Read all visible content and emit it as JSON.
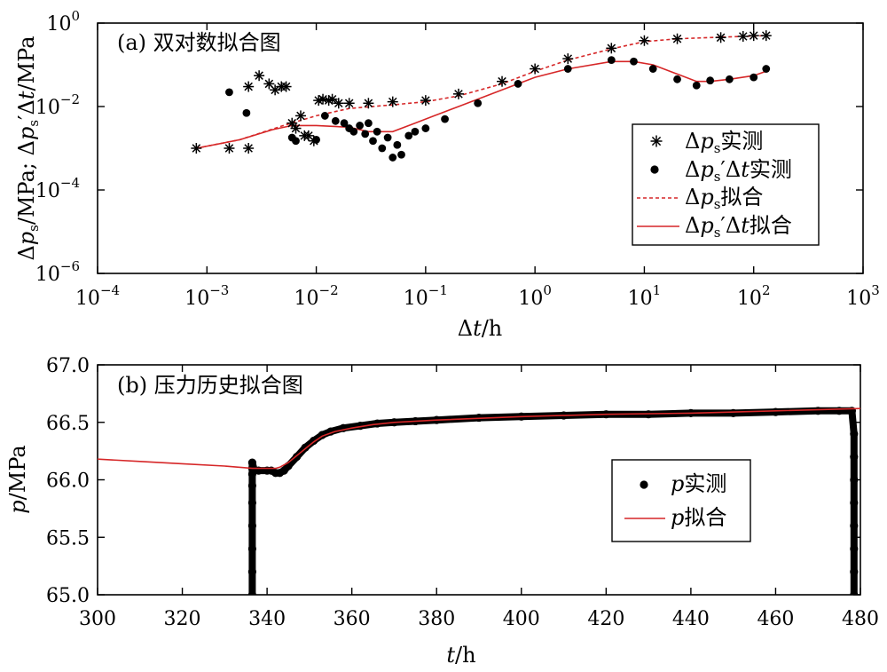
{
  "chart_data": [
    {
      "type": "scatter",
      "title": "(a) 双对数拟合图",
      "xlabel": "Δt/h",
      "ylabel": "Δp_s/MPa; Δp_s′Δt/MPa",
      "x_scale": "log",
      "y_scale": "log",
      "xlim": [
        0.0001,
        1000
      ],
      "ylim": [
        1e-06,
        1
      ],
      "x_ticks": [
        {
          "base": "10",
          "exp": "−4",
          "value": 0.0001
        },
        {
          "base": "10",
          "exp": "−3",
          "value": 0.001
        },
        {
          "base": "10",
          "exp": "−2",
          "value": 0.01
        },
        {
          "base": "10",
          "exp": "−1",
          "value": 0.1
        },
        {
          "base": "10",
          "exp": "0",
          "value": 1
        },
        {
          "base": "10",
          "exp": "1",
          "value": 10
        },
        {
          "base": "10",
          "exp": "2",
          "value": 100
        },
        {
          "base": "10",
          "exp": "3",
          "value": 1000
        }
      ],
      "y_ticks": [
        {
          "base": "10",
          "exp": "−6",
          "value": 1e-06
        },
        {
          "base": "10",
          "exp": "−4",
          "value": 0.0001
        },
        {
          "base": "10",
          "exp": "−2",
          "value": 0.01
        },
        {
          "base": "10",
          "exp": "0",
          "value": 1
        }
      ],
      "legend_position": "right",
      "legend": [
        {
          "marker": "star",
          "label": "Δp_s实测"
        },
        {
          "marker": "dot",
          "label": "Δp_s′Δt实测"
        },
        {
          "marker": "dashed-line",
          "label": "Δp_s拟合"
        },
        {
          "marker": "solid-line",
          "label": "Δp_s′Δt拟合"
        }
      ],
      "series": [
        {
          "name": "Δp_s实测",
          "marker": "star",
          "x": [
            0.0008,
            0.0016,
            0.0024,
            0.0024,
            0.003,
            0.0037,
            0.0042,
            0.0048,
            0.0053,
            0.006,
            0.0065,
            0.0072,
            0.0078,
            0.0085,
            0.0095,
            0.0105,
            0.0115,
            0.013,
            0.014,
            0.016,
            0.02,
            0.03,
            0.05,
            0.1,
            0.2,
            0.5,
            1,
            2,
            5,
            10,
            20,
            50,
            80,
            100,
            130
          ],
          "y": [
            0.001,
            0.001,
            0.001,
            0.03,
            0.055,
            0.035,
            0.025,
            0.03,
            0.03,
            0.004,
            0.003,
            0.006,
            0.002,
            0.002,
            0.0015,
            0.014,
            0.015,
            0.014,
            0.015,
            0.012,
            0.012,
            0.012,
            0.013,
            0.014,
            0.02,
            0.04,
            0.08,
            0.14,
            0.25,
            0.38,
            0.42,
            0.45,
            0.48,
            0.5,
            0.5
          ]
        },
        {
          "name": "Δp_s′Δt实测",
          "marker": "dot",
          "x": [
            0.0016,
            0.0023,
            0.006,
            0.0065,
            0.01,
            0.012,
            0.015,
            0.018,
            0.02,
            0.022,
            0.025,
            0.028,
            0.03,
            0.033,
            0.036,
            0.04,
            0.045,
            0.05,
            0.055,
            0.06,
            0.07,
            0.08,
            0.1,
            0.15,
            0.3,
            0.7,
            2,
            5,
            8,
            12,
            20,
            30,
            40,
            60,
            100,
            130
          ],
          "y": [
            0.022,
            0.007,
            0.0018,
            0.0015,
            0.0016,
            0.006,
            0.0045,
            0.004,
            0.003,
            0.0025,
            0.0035,
            0.0022,
            0.004,
            0.0015,
            0.0025,
            0.001,
            0.0018,
            0.0006,
            0.0012,
            0.0007,
            0.002,
            0.0025,
            0.003,
            0.005,
            0.012,
            0.035,
            0.08,
            0.13,
            0.12,
            0.08,
            0.045,
            0.032,
            0.042,
            0.045,
            0.05,
            0.08
          ]
        },
        {
          "name": "Δp_s拟合",
          "line": "dashed",
          "color": "#d62728",
          "x": [
            0.0008,
            0.002,
            0.005,
            0.01,
            0.02,
            0.05,
            0.1,
            0.2,
            0.5,
            1,
            2,
            5,
            10,
            20,
            50,
            100,
            130
          ],
          "y": [
            0.001,
            0.0016,
            0.0035,
            0.006,
            0.009,
            0.011,
            0.013,
            0.018,
            0.035,
            0.07,
            0.13,
            0.24,
            0.36,
            0.42,
            0.46,
            0.49,
            0.5
          ]
        },
        {
          "name": "Δp_s′Δt拟合",
          "line": "solid",
          "color": "#d62728",
          "x": [
            0.0008,
            0.002,
            0.004,
            0.006,
            0.01,
            0.02,
            0.03,
            0.05,
            0.08,
            0.12,
            0.2,
            0.5,
            1,
            2,
            5,
            8,
            12,
            20,
            30,
            40,
            60,
            100,
            130
          ],
          "y": [
            0.001,
            0.0016,
            0.0028,
            0.0035,
            0.0035,
            0.0032,
            0.0025,
            0.0025,
            0.004,
            0.006,
            0.01,
            0.025,
            0.05,
            0.08,
            0.12,
            0.12,
            0.1,
            0.06,
            0.04,
            0.04,
            0.045,
            0.055,
            0.07
          ]
        }
      ]
    },
    {
      "type": "scatter",
      "title": "(b) 压力历史拟合图",
      "xlabel": "t/h",
      "ylabel": "p/MPa",
      "xlim": [
        300,
        480
      ],
      "ylim": [
        65.0,
        67.0
      ],
      "x_ticks": [
        "300",
        "320",
        "340",
        "360",
        "380",
        "400",
        "420",
        "440",
        "460",
        "480"
      ],
      "y_ticks": [
        "65.0",
        "65.5",
        "66.0",
        "66.5",
        "67.0"
      ],
      "legend_position": "right",
      "legend": [
        {
          "marker": "dot",
          "label": "p实测"
        },
        {
          "marker": "solid-line",
          "label": "p拟合"
        }
      ],
      "series": [
        {
          "name": "p实测",
          "marker": "dot",
          "x": [
            336.5,
            336.5,
            336.5,
            336.5,
            336.5,
            336.5,
            336.5,
            336.5,
            336.5,
            337,
            338,
            340,
            341,
            342,
            343,
            344,
            345,
            347,
            349,
            351,
            353,
            355,
            358,
            362,
            366,
            370,
            375,
            380,
            390,
            400,
            410,
            420,
            430,
            440,
            450,
            460,
            470,
            475,
            478,
            478.5,
            478.5,
            478.5,
            478.5,
            478.5,
            478.5,
            478.5,
            478.5
          ],
          "y": [
            65.0,
            65.2,
            65.4,
            65.6,
            65.8,
            65.95,
            66.05,
            66.1,
            66.15,
            66.08,
            66.08,
            66.08,
            66.08,
            66.06,
            66.06,
            66.08,
            66.12,
            66.2,
            66.28,
            66.34,
            66.39,
            66.42,
            66.45,
            66.47,
            66.49,
            66.5,
            66.51,
            66.52,
            66.54,
            66.55,
            66.56,
            66.57,
            66.57,
            66.58,
            66.58,
            66.59,
            66.6,
            66.6,
            66.6,
            66.4,
            66.2,
            66.0,
            65.8,
            65.6,
            65.4,
            65.2,
            65.0
          ]
        },
        {
          "name": "p拟合",
          "line": "solid",
          "color": "#d62728",
          "x": [
            300,
            310,
            320,
            330,
            336.5,
            338,
            340,
            342,
            343,
            345,
            347,
            349,
            351,
            353,
            356,
            360,
            365,
            370,
            380,
            400,
            420,
            440,
            460,
            480
          ],
          "y": [
            66.18,
            66.16,
            66.14,
            66.12,
            66.1,
            66.1,
            66.1,
            66.1,
            66.11,
            66.15,
            66.21,
            66.27,
            66.33,
            66.38,
            66.42,
            66.45,
            66.48,
            66.5,
            66.52,
            66.55,
            66.57,
            66.58,
            66.6,
            66.62
          ]
        }
      ]
    }
  ]
}
